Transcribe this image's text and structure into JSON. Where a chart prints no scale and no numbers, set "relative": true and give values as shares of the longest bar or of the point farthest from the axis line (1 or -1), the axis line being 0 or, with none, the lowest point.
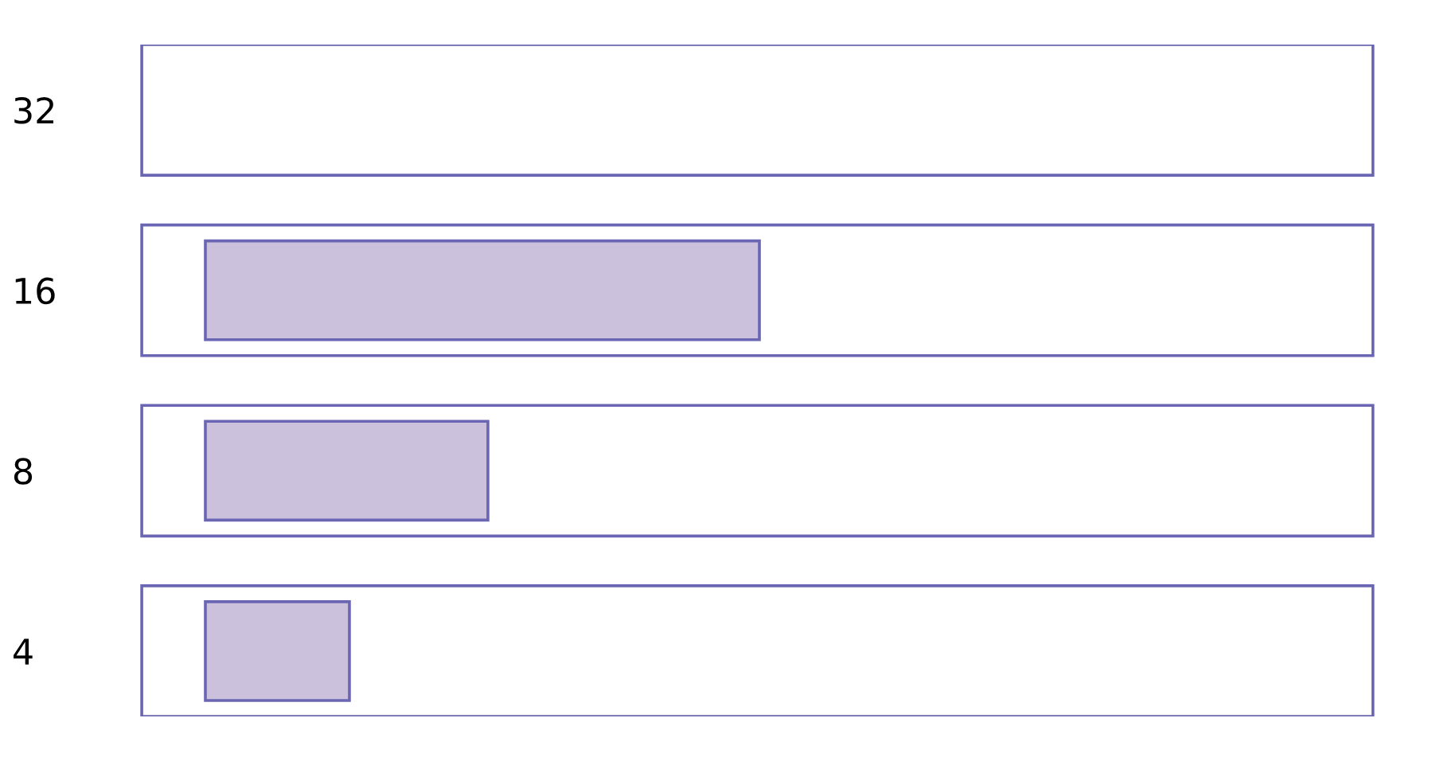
{
  "chart_data": {
    "type": "bar",
    "orientation": "horizontal",
    "relative": true,
    "categories": [
      "32",
      "16",
      "8",
      "4"
    ],
    "values": [
      0,
      1,
      0.51,
      0.26
    ],
    "color": "#cbc1dd",
    "grid": false,
    "legend": false
  }
}
